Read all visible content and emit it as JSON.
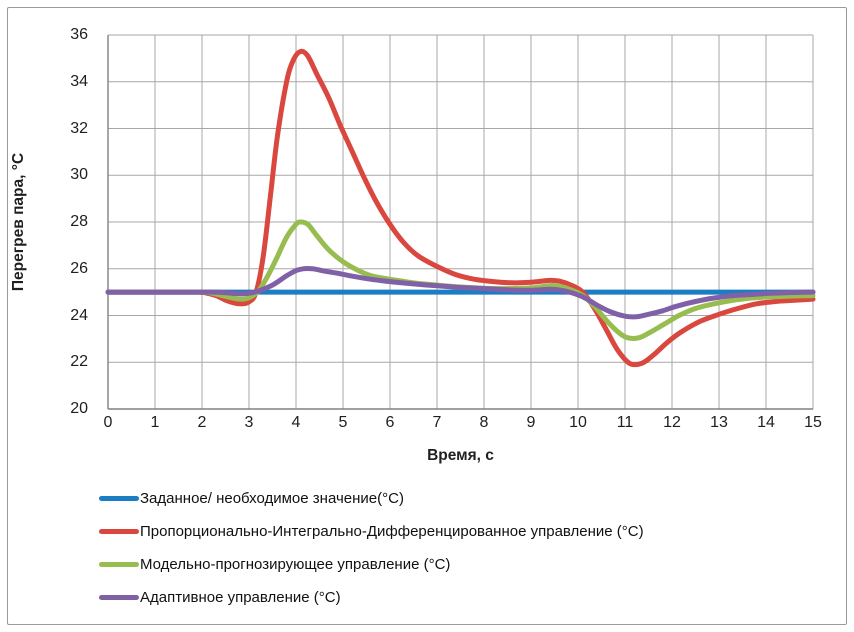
{
  "chart_data": {
    "type": "line",
    "title": "",
    "xlabel": "Время, с",
    "ylabel": "Перегрев пара, °C",
    "xlim": [
      0,
      15
    ],
    "ylim": [
      20,
      36
    ],
    "x_ticks": [
      0,
      1,
      2,
      3,
      4,
      5,
      6,
      7,
      8,
      9,
      10,
      11,
      12,
      13,
      14,
      15
    ],
    "y_ticks": [
      20,
      22,
      24,
      26,
      28,
      30,
      32,
      34,
      36
    ],
    "grid": "both",
    "grid_color": "#a7a7a7",
    "axis_color": "#808080",
    "legend_position": "bottom-left",
    "series": [
      {
        "name": "Заданное/ необходимое значение(°C)",
        "color": "#1b7ec3",
        "stroke_width": 5,
        "points": [
          [
            0,
            25
          ],
          [
            5,
            25
          ],
          [
            10,
            25
          ],
          [
            15,
            25
          ]
        ]
      },
      {
        "name": "Пропорционально-Интегрально-Дифференцированное управление (°C)",
        "color": "#d9473e",
        "stroke_width": 5,
        "points": [
          [
            0,
            25
          ],
          [
            1,
            25
          ],
          [
            1.9,
            25
          ],
          [
            2.1,
            24.96
          ],
          [
            2.3,
            24.85
          ],
          [
            2.55,
            24.62
          ],
          [
            2.8,
            24.5
          ],
          [
            3.0,
            24.58
          ],
          [
            3.15,
            25.0
          ],
          [
            3.3,
            26.5
          ],
          [
            3.45,
            29.0
          ],
          [
            3.6,
            31.6
          ],
          [
            3.8,
            34.0
          ],
          [
            3.95,
            34.95
          ],
          [
            4.1,
            35.3
          ],
          [
            4.25,
            35.1
          ],
          [
            4.45,
            34.3
          ],
          [
            4.7,
            33.3
          ],
          [
            4.95,
            32.1
          ],
          [
            5.2,
            31.0
          ],
          [
            5.45,
            29.9
          ],
          [
            5.7,
            28.9
          ],
          [
            6.0,
            27.9
          ],
          [
            6.3,
            27.1
          ],
          [
            6.6,
            26.55
          ],
          [
            7.0,
            26.1
          ],
          [
            7.4,
            25.75
          ],
          [
            7.8,
            25.55
          ],
          [
            8.2,
            25.45
          ],
          [
            8.6,
            25.4
          ],
          [
            9.0,
            25.42
          ],
          [
            9.4,
            25.5
          ],
          [
            9.6,
            25.47
          ],
          [
            9.85,
            25.3
          ],
          [
            10.1,
            25.0
          ],
          [
            10.35,
            24.3
          ],
          [
            10.6,
            23.4
          ],
          [
            10.85,
            22.5
          ],
          [
            11.1,
            21.95
          ],
          [
            11.35,
            21.95
          ],
          [
            11.6,
            22.3
          ],
          [
            11.9,
            22.85
          ],
          [
            12.2,
            23.3
          ],
          [
            12.6,
            23.75
          ],
          [
            13.0,
            24.05
          ],
          [
            13.4,
            24.3
          ],
          [
            13.8,
            24.5
          ],
          [
            14.2,
            24.6
          ],
          [
            14.6,
            24.65
          ],
          [
            15,
            24.7
          ]
        ]
      },
      {
        "name": "Модельно-прогнозирующее управление (°C)",
        "color": "#97bd50",
        "stroke_width": 5,
        "points": [
          [
            0,
            25
          ],
          [
            1,
            25
          ],
          [
            2.0,
            25
          ],
          [
            2.2,
            24.96
          ],
          [
            2.5,
            24.82
          ],
          [
            2.8,
            24.7
          ],
          [
            3.0,
            24.76
          ],
          [
            3.2,
            25.05
          ],
          [
            3.4,
            25.7
          ],
          [
            3.6,
            26.5
          ],
          [
            3.8,
            27.35
          ],
          [
            4.0,
            27.9
          ],
          [
            4.1,
            28.0
          ],
          [
            4.25,
            27.9
          ],
          [
            4.45,
            27.4
          ],
          [
            4.7,
            26.8
          ],
          [
            5.0,
            26.3
          ],
          [
            5.3,
            25.95
          ],
          [
            5.6,
            25.7
          ],
          [
            6.0,
            25.55
          ],
          [
            6.5,
            25.4
          ],
          [
            7.0,
            25.3
          ],
          [
            7.5,
            25.22
          ],
          [
            8.0,
            25.17
          ],
          [
            8.5,
            25.15
          ],
          [
            9.0,
            25.18
          ],
          [
            9.4,
            25.28
          ],
          [
            9.6,
            25.25
          ],
          [
            9.85,
            25.1
          ],
          [
            10.1,
            24.85
          ],
          [
            10.35,
            24.4
          ],
          [
            10.6,
            23.8
          ],
          [
            10.85,
            23.3
          ],
          [
            11.05,
            23.05
          ],
          [
            11.3,
            23.05
          ],
          [
            11.55,
            23.3
          ],
          [
            11.85,
            23.65
          ],
          [
            12.15,
            24.0
          ],
          [
            12.5,
            24.3
          ],
          [
            12.9,
            24.5
          ],
          [
            13.3,
            24.65
          ],
          [
            13.7,
            24.75
          ],
          [
            14.1,
            24.8
          ],
          [
            14.5,
            24.83
          ],
          [
            15,
            24.85
          ]
        ]
      },
      {
        "name": "Адаптивное управление (°C)",
        "color": "#8061a7",
        "stroke_width": 5,
        "points": [
          [
            0,
            25
          ],
          [
            1,
            25
          ],
          [
            2.2,
            25
          ],
          [
            2.5,
            24.97
          ],
          [
            2.8,
            24.93
          ],
          [
            3.0,
            24.95
          ],
          [
            3.2,
            25.05
          ],
          [
            3.5,
            25.3
          ],
          [
            3.8,
            25.7
          ],
          [
            4.0,
            25.92
          ],
          [
            4.15,
            26.0
          ],
          [
            4.35,
            26.0
          ],
          [
            4.6,
            25.9
          ],
          [
            4.9,
            25.8
          ],
          [
            5.2,
            25.68
          ],
          [
            5.6,
            25.55
          ],
          [
            6.0,
            25.45
          ],
          [
            6.5,
            25.35
          ],
          [
            7.0,
            25.27
          ],
          [
            7.5,
            25.2
          ],
          [
            8.0,
            25.15
          ],
          [
            8.5,
            25.1
          ],
          [
            9.0,
            25.08
          ],
          [
            9.4,
            25.12
          ],
          [
            9.65,
            25.08
          ],
          [
            9.9,
            24.95
          ],
          [
            10.15,
            24.75
          ],
          [
            10.4,
            24.45
          ],
          [
            10.7,
            24.15
          ],
          [
            11.0,
            23.97
          ],
          [
            11.25,
            23.95
          ],
          [
            11.5,
            24.05
          ],
          [
            11.8,
            24.2
          ],
          [
            12.1,
            24.4
          ],
          [
            12.5,
            24.6
          ],
          [
            12.9,
            24.75
          ],
          [
            13.3,
            24.85
          ],
          [
            13.7,
            24.9
          ],
          [
            14.1,
            24.95
          ],
          [
            14.5,
            24.98
          ],
          [
            15,
            25.0
          ]
        ]
      }
    ]
  }
}
